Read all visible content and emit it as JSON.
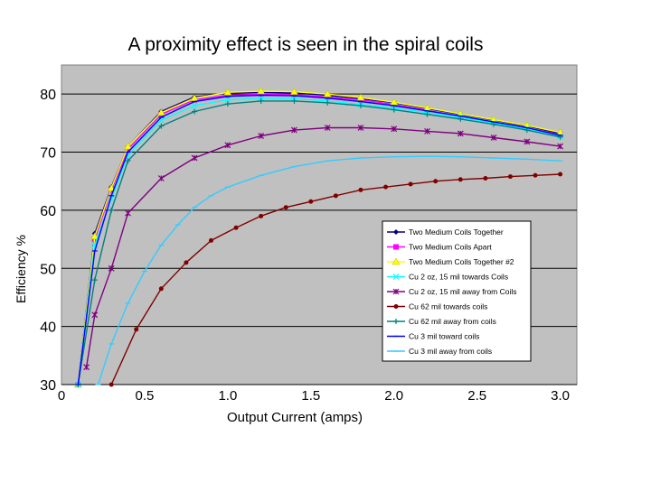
{
  "chart_data": {
    "type": "line",
    "title": "A proximity effect is seen in the spiral coils",
    "xlabel": "Output Current (amps)",
    "ylabel": "Efficiency %",
    "xlim": [
      0,
      3.1
    ],
    "ylim": [
      30,
      85
    ],
    "grid": true,
    "legend_position": "bottom-right",
    "x_ticks": [
      "0",
      "0.5",
      "1.0",
      "1.5",
      "2.0",
      "2.5",
      "3.0"
    ],
    "x_tick_values": [
      0,
      0.5,
      1.0,
      1.5,
      2.0,
      2.5,
      3.0
    ],
    "y_ticks": [
      "30",
      "40",
      "50",
      "60",
      "70",
      "80"
    ],
    "y_tick_values": [
      30,
      40,
      50,
      60,
      70,
      80
    ],
    "series": [
      {
        "name": "Two Medium Coils Together",
        "color": "#000080",
        "marker": "diamond",
        "x": [
          0.1,
          0.2,
          0.3,
          0.4,
          0.6,
          0.8,
          1.0,
          1.2,
          1.4,
          1.6,
          1.8,
          2.0,
          2.2,
          2.4,
          2.6,
          2.8,
          3.0
        ],
        "y": [
          30,
          56,
          64,
          71,
          77,
          79.5,
          80.2,
          80.3,
          80.2,
          79.8,
          79.2,
          78.5,
          77.5,
          76.5,
          75.5,
          74.5,
          73.2
        ]
      },
      {
        "name": "Two Medium Coils Apart",
        "color": "#ff00ff",
        "marker": "square",
        "x": [
          0.1,
          0.2,
          0.3,
          0.4,
          0.6,
          0.8,
          1.0,
          1.2,
          1.4,
          1.6,
          1.8,
          2.0,
          2.2,
          2.4,
          2.6,
          2.8,
          3.0
        ],
        "y": [
          30,
          55,
          63.5,
          70.5,
          76.5,
          79,
          79.8,
          80,
          79.9,
          79.5,
          79,
          78.2,
          77.2,
          76.2,
          75.2,
          74.2,
          73
        ]
      },
      {
        "name": "Two Medium Coils Together #2",
        "color": "#ffff00",
        "marker": "triangle",
        "x": [
          0.1,
          0.2,
          0.3,
          0.4,
          0.6,
          0.8,
          1.0,
          1.2,
          1.4,
          1.6,
          1.8,
          2.0,
          2.2,
          2.4,
          2.6,
          2.8,
          3.0
        ],
        "y": [
          30,
          55.5,
          63.8,
          71,
          76.8,
          79.3,
          80.3,
          80.5,
          80.4,
          80,
          79.4,
          78.6,
          77.6,
          76.6,
          75.6,
          74.6,
          73.4
        ]
      },
      {
        "name": "Cu 2 oz, 15 mil towards Coils",
        "color": "#00ffff",
        "marker": "x",
        "x": [
          0.1,
          0.2,
          0.3,
          0.4,
          0.6,
          0.8,
          1.0,
          1.2,
          1.4,
          1.6,
          1.8,
          2.0,
          2.2,
          2.4,
          2.6,
          2.8,
          3.0
        ],
        "y": [
          30,
          54,
          62,
          69.5,
          75.5,
          78,
          79,
          79.3,
          79.2,
          78.8,
          78.2,
          77.6,
          76.8,
          76,
          75,
          74,
          72.7
        ]
      },
      {
        "name": "Cu 2 oz, 15 mil away from Coils",
        "color": "#800080",
        "marker": "star",
        "x": [
          0.15,
          0.2,
          0.3,
          0.4,
          0.6,
          0.8,
          1.0,
          1.2,
          1.4,
          1.6,
          1.8,
          2.0,
          2.2,
          2.4,
          2.6,
          2.8,
          3.0
        ],
        "y": [
          33,
          42,
          50,
          59.5,
          65.5,
          69,
          71.2,
          72.8,
          73.8,
          74.2,
          74.2,
          74,
          73.6,
          73.2,
          72.5,
          71.8,
          71
        ]
      },
      {
        "name": "Cu 62 mil towards coils",
        "color": "#800000",
        "marker": "circle",
        "x": [
          0.3,
          0.45,
          0.6,
          0.75,
          0.9,
          1.05,
          1.2,
          1.35,
          1.5,
          1.65,
          1.8,
          1.95,
          2.1,
          2.25,
          2.4,
          2.55,
          2.7,
          2.85,
          3.0
        ],
        "y": [
          30,
          39.5,
          46.5,
          51,
          54.8,
          57,
          59,
          60.5,
          61.5,
          62.5,
          63.5,
          64,
          64.5,
          65,
          65.3,
          65.5,
          65.8,
          66,
          66.2
        ]
      },
      {
        "name": "Cu 62 mil away from coils",
        "color": "#008080",
        "marker": "plus",
        "x": [
          0.1,
          0.2,
          0.3,
          0.4,
          0.6,
          0.8,
          1.0,
          1.2,
          1.4,
          1.6,
          1.8,
          2.0,
          2.2,
          2.4,
          2.6,
          2.8,
          3.0
        ],
        "y": [
          30,
          48,
          60,
          68.5,
          74.5,
          77,
          78.3,
          78.8,
          78.8,
          78.5,
          78,
          77.3,
          76.5,
          75.7,
          74.8,
          73.8,
          72.6
        ]
      },
      {
        "name": "Cu 3 mil toward coils",
        "color": "#0000ff",
        "marker": "dash",
        "x": [
          0.1,
          0.2,
          0.3,
          0.4,
          0.6,
          0.8,
          1.0,
          1.2,
          1.4,
          1.6,
          1.8,
          2.0,
          2.2,
          2.4,
          2.6,
          2.8,
          3.0
        ],
        "y": [
          30,
          53,
          62.5,
          70,
          76,
          78.7,
          79.6,
          79.8,
          79.7,
          79.3,
          78.7,
          78,
          77.1,
          76.2,
          75.2,
          74.2,
          72.9
        ]
      },
      {
        "name": "Cu 3 mil away from coils",
        "color": "#33ccff",
        "marker": "dash",
        "x": [
          0.22,
          0.3,
          0.4,
          0.5,
          0.6,
          0.7,
          0.8,
          0.9,
          1.0,
          1.2,
          1.4,
          1.6,
          1.8,
          2.0,
          2.2,
          2.4,
          2.6,
          2.8,
          3.0
        ],
        "y": [
          30,
          37,
          44,
          49.5,
          54,
          57.5,
          60.5,
          62.5,
          64,
          66,
          67.5,
          68.5,
          69,
          69.2,
          69.3,
          69.2,
          69,
          68.8,
          68.5
        ]
      }
    ]
  }
}
